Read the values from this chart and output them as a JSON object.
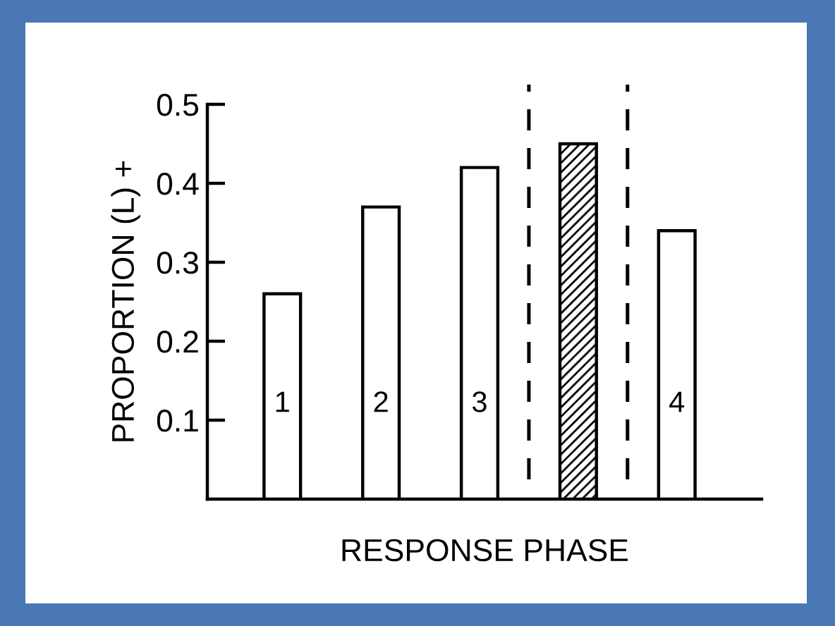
{
  "chart_data": {
    "type": "bar",
    "xlabel": "RESPONSE PHASE",
    "ylabel": "PROPORTION (L) +",
    "categories": [
      "1",
      "2",
      "3",
      null,
      "4"
    ],
    "values": [
      0.26,
      0.37,
      0.42,
      0.45,
      0.34
    ],
    "colors": [
      "#ffffff",
      "#ffffff",
      "#ffffff",
      "#000000",
      "#ffffff"
    ],
    "ylim": [
      0,
      0.5
    ],
    "yticks": [
      0.1,
      0.2,
      0.3,
      0.4,
      0.5
    ],
    "grid": false,
    "legend": false
  }
}
